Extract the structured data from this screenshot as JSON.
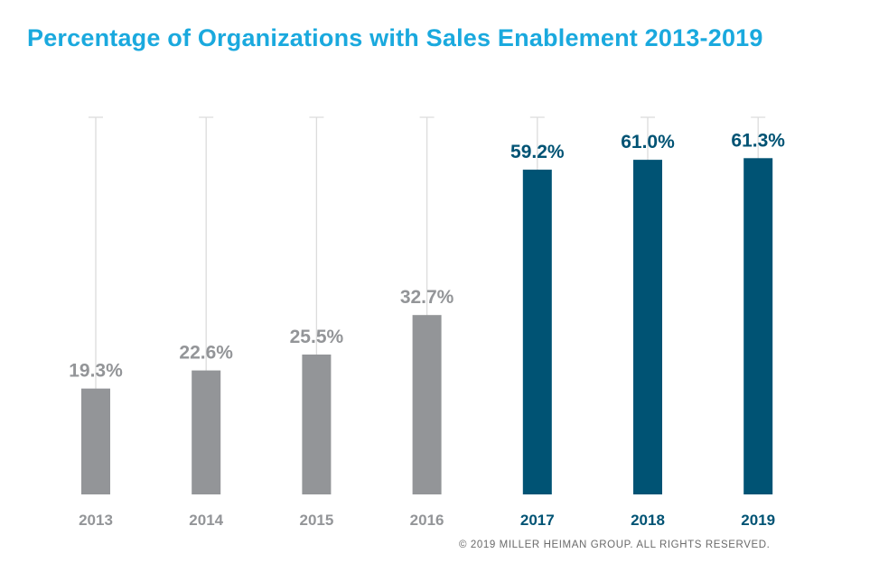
{
  "chart_data": {
    "type": "bar",
    "title": "Percentage of Organizations with Sales Enablement 2013-2019",
    "categories": [
      "2013",
      "2014",
      "2015",
      "2016",
      "2017",
      "2018",
      "2019"
    ],
    "values": [
      19.3,
      22.6,
      25.5,
      32.7,
      59.2,
      61.0,
      61.3
    ],
    "value_labels": [
      "19.3%",
      "22.6%",
      "25.5%",
      "32.7%",
      "59.2%",
      "61.0%",
      "61.3%"
    ],
    "highlight": [
      false,
      false,
      false,
      false,
      true,
      true,
      true
    ],
    "xlabel": "",
    "ylabel": "",
    "ylim": [
      0,
      64
    ],
    "grid": false
  },
  "colors": {
    "title": "#1aa9de",
    "bar_muted": "#939598",
    "bar_highlight": "#005374",
    "label_muted": "#939598",
    "label_highlight": "#005374",
    "guide_line": "#dcdcdc"
  },
  "footer": {
    "copyright": "© 2019 MILLER HEIMAN GROUP. ALL RIGHTS RESERVED."
  }
}
